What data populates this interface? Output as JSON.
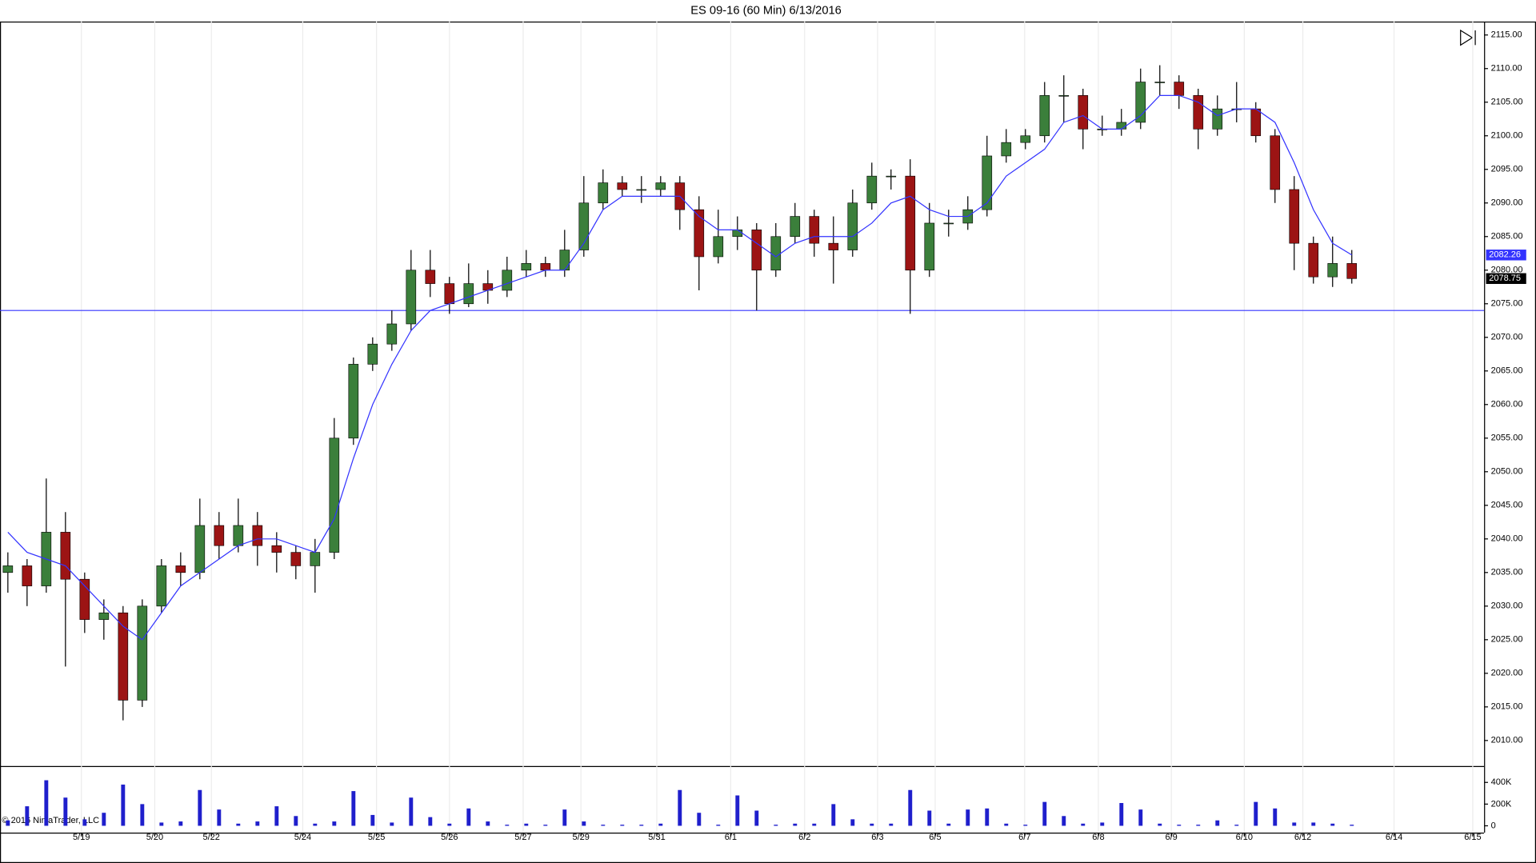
{
  "chart_data": {
    "type": "candlestick",
    "title": "ES 09-16 (60 Min)  6/13/2016",
    "copyright": "© 2016 NinjaTrader, LLC",
    "up_color": "#3b7f3b",
    "down_color": "#9c1414",
    "wick_color": "#000000",
    "open": [
      2035,
      2036,
      2033,
      2041,
      2034,
      2028,
      2029,
      2016,
      2030,
      2036,
      2035,
      2042,
      2039,
      2042,
      2039,
      2038,
      2036,
      2038,
      2055,
      2066,
      2069,
      2072,
      2080,
      2078,
      2075,
      2078,
      2077,
      2080,
      2081,
      2080,
      2083,
      2090,
      2093,
      2092,
      2092,
      2093,
      2089,
      2082,
      2085,
      2086,
      2080,
      2085,
      2088,
      2084,
      2083,
      2090,
      2094,
      2094,
      2080,
      2087,
      2087,
      2089,
      2097,
      2099,
      2100,
      2106,
      2106,
      2101,
      2101,
      2102,
      2108,
      2108,
      2106,
      2101,
      2104,
      2104,
      2100,
      2092,
      2084,
      2079,
      2081
    ],
    "high": [
      2038,
      2037,
      2049,
      2044,
      2035,
      2031,
      2030,
      2031,
      2037,
      2038,
      2046,
      2044,
      2046,
      2044,
      2041,
      2039,
      2040,
      2058,
      2067,
      2070,
      2074,
      2083,
      2083,
      2079,
      2081,
      2080,
      2082,
      2083,
      2082,
      2086,
      2094,
      2095,
      2094,
      2094,
      2094,
      2094,
      2091,
      2089,
      2088,
      2087,
      2087,
      2090,
      2089,
      2088,
      2092,
      2096,
      2095,
      2096.5,
      2090,
      2089,
      2091,
      2100,
      2101,
      2101,
      2108,
      2109,
      2107,
      2103,
      2104,
      2110,
      2110.5,
      2109,
      2107,
      2106,
      2108,
      2105,
      2101,
      2094,
      2085,
      2085,
      2083
    ],
    "low": [
      2032,
      2030,
      2032,
      2021,
      2026,
      2025,
      2013,
      2015,
      2029,
      2033,
      2034,
      2037,
      2038,
      2036,
      2035,
      2034,
      2032,
      2037,
      2054,
      2065,
      2068,
      2071,
      2076,
      2073.5,
      2074.5,
      2075,
      2076,
      2079,
      2079,
      2079,
      2082,
      2089,
      2091,
      2090,
      2091,
      2086,
      2077,
      2081,
      2083,
      2074,
      2079,
      2084,
      2082,
      2078,
      2082,
      2089,
      2092,
      2073.5,
      2079,
      2085,
      2086,
      2088,
      2096,
      2098,
      2099,
      2102,
      2098,
      2100,
      2100,
      2101,
      2106,
      2104,
      2098,
      2100,
      2102,
      2099,
      2090,
      2080,
      2078,
      2077.5,
      2078
    ],
    "close": [
      2036,
      2033,
      2041,
      2034,
      2028,
      2029,
      2016,
      2030,
      2036,
      2035,
      2042,
      2039,
      2042,
      2039,
      2038,
      2036,
      2038,
      2055,
      2066,
      2069,
      2072,
      2080,
      2078,
      2075,
      2078,
      2077,
      2080,
      2081,
      2080,
      2083,
      2090,
      2093,
      2092,
      2092,
      2093,
      2089,
      2082,
      2085,
      2086,
      2080,
      2085,
      2088,
      2084,
      2083,
      2090,
      2094,
      2094,
      2080,
      2087,
      2087,
      2089,
      2097,
      2099,
      2100,
      2106,
      2106,
      2101,
      2101,
      2102,
      2108,
      2108,
      2106,
      2101,
      2104,
      2104,
      2100,
      2092,
      2084,
      2079,
      2081,
      2078.75
    ],
    "ma": {
      "color": "#3333ff",
      "values": [
        2041,
        2038,
        2037,
        2036,
        2033,
        2030,
        2027,
        2025,
        2029,
        2033,
        2035,
        2037,
        2039,
        2040,
        2040,
        2039,
        2038,
        2043,
        2052,
        2060,
        2066,
        2071,
        2074,
        2075,
        2076,
        2077,
        2078,
        2079,
        2080,
        2080,
        2084,
        2089,
        2091,
        2091,
        2091,
        2091,
        2088,
        2086,
        2086,
        2084,
        2082,
        2084,
        2085,
        2085,
        2085,
        2087,
        2090,
        2091,
        2089,
        2088,
        2088,
        2090,
        2094,
        2096,
        2098,
        2102,
        2103,
        2101,
        2101,
        2103,
        2106,
        2106,
        2105,
        2103,
        2104,
        2104,
        2102,
        2096,
        2089,
        2084,
        2082.26
      ]
    },
    "hline": {
      "value": 2074,
      "color": "#3333ff"
    },
    "ylim": [
      2006.2,
      2117.0
    ],
    "yticks": [
      {
        "value": 2010,
        "label": "2010.00"
      },
      {
        "value": 2015,
        "label": "2015.00"
      },
      {
        "value": 2020,
        "label": "2020.00"
      },
      {
        "value": 2025,
        "label": "2025.00"
      },
      {
        "value": 2030,
        "label": "2030.00"
      },
      {
        "value": 2035,
        "label": "2035.00"
      },
      {
        "value": 2040,
        "label": "2040.00"
      },
      {
        "value": 2045,
        "label": "2045.00"
      },
      {
        "value": 2050,
        "label": "2050.00"
      },
      {
        "value": 2055,
        "label": "2055.00"
      },
      {
        "value": 2060,
        "label": "2060.00"
      },
      {
        "value": 2065,
        "label": "2065.00"
      },
      {
        "value": 2070,
        "label": "2070.00"
      },
      {
        "value": 2075,
        "label": "2075.00"
      },
      {
        "value": 2080,
        "label": "2080.00"
      },
      {
        "value": 2085,
        "label": "2085.00"
      },
      {
        "value": 2090,
        "label": "2090.00"
      },
      {
        "value": 2095,
        "label": "2095.00"
      },
      {
        "value": 2100,
        "label": "2100.00"
      },
      {
        "value": 2105,
        "label": "2105.00"
      },
      {
        "value": 2110,
        "label": "2110.00"
      },
      {
        "value": 2115,
        "label": "2115.00"
      }
    ],
    "xlim": [
      -0.41,
      76.89
    ],
    "xticks": [
      {
        "value": 3.83,
        "label": "5/19"
      },
      {
        "value": 7.65,
        "label": "5/20"
      },
      {
        "value": 10.6,
        "label": "5/22"
      },
      {
        "value": 15.36,
        "label": "5/24"
      },
      {
        "value": 19.2,
        "label": "5/25"
      },
      {
        "value": 23.0,
        "label": "5/26"
      },
      {
        "value": 26.84,
        "label": "5/27"
      },
      {
        "value": 29.85,
        "label": "5/29"
      },
      {
        "value": 33.8,
        "label": "5/31"
      },
      {
        "value": 37.65,
        "label": "6/1"
      },
      {
        "value": 41.5,
        "label": "6/2"
      },
      {
        "value": 45.3,
        "label": "6/3"
      },
      {
        "value": 48.3,
        "label": "6/5"
      },
      {
        "value": 52.96,
        "label": "6/7"
      },
      {
        "value": 56.8,
        "label": "6/8"
      },
      {
        "value": 60.6,
        "label": "6/9"
      },
      {
        "value": 64.4,
        "label": "6/10"
      },
      {
        "value": 67.45,
        "label": "6/12"
      },
      {
        "value": 72.2,
        "label": "6/14"
      },
      {
        "value": 76.3,
        "label": "6/15"
      }
    ],
    "volume": {
      "color": "#1f1fcc",
      "values": [
        50000,
        180000,
        420000,
        260000,
        60000,
        120000,
        380000,
        200000,
        30000,
        40000,
        330000,
        150000,
        20000,
        40000,
        180000,
        90000,
        20000,
        40000,
        320000,
        100000,
        30000,
        260000,
        80000,
        20000,
        160000,
        40000,
        10000,
        20000,
        10000,
        150000,
        40000,
        10000,
        10000,
        10000,
        20000,
        330000,
        120000,
        10000,
        280000,
        140000,
        10000,
        20000,
        20000,
        200000,
        60000,
        20000,
        20000,
        330000,
        140000,
        20000,
        150000,
        160000,
        20000,
        10000,
        220000,
        90000,
        20000,
        30000,
        210000,
        150000,
        20000,
        10000,
        10000,
        50000,
        10000,
        220000,
        160000,
        30000,
        30000,
        20000,
        10000
      ],
      "ylim": [
        -63000,
        533000
      ],
      "yticks": [
        0,
        {
          "value": 200000,
          "label": "200K"
        },
        {
          "value": 400000,
          "label": "400K"
        }
      ]
    }
  }
}
